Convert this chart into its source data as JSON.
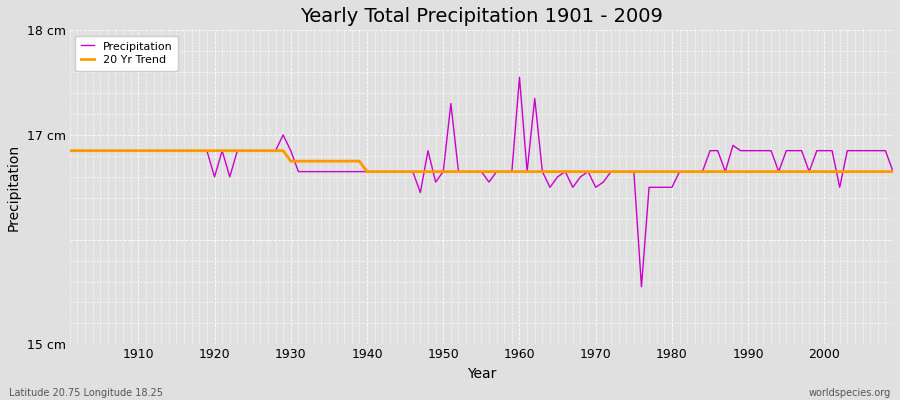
{
  "title": "Yearly Total Precipitation 1901 - 2009",
  "xlabel": "Year",
  "ylabel": "Precipitation",
  "subtitle_left": "Latitude 20.75 Longitude 18.25",
  "watermark": "worldspecies.org",
  "ylim": [
    15.0,
    18.0
  ],
  "yticks": [
    15.0,
    16.0,
    17.0,
    18.0
  ],
  "ytick_labels": [
    "15 cm",
    "",
    "17 cm",
    "18 cm"
  ],
  "xlim": [
    1901,
    2009
  ],
  "xticks": [
    1910,
    1920,
    1930,
    1940,
    1950,
    1960,
    1970,
    1980,
    1990,
    2000
  ],
  "years": [
    1901,
    1902,
    1903,
    1904,
    1905,
    1906,
    1907,
    1908,
    1909,
    1910,
    1911,
    1912,
    1913,
    1914,
    1915,
    1916,
    1917,
    1918,
    1919,
    1920,
    1921,
    1922,
    1923,
    1924,
    1925,
    1926,
    1927,
    1928,
    1929,
    1930,
    1931,
    1932,
    1933,
    1934,
    1935,
    1936,
    1937,
    1938,
    1939,
    1940,
    1941,
    1942,
    1943,
    1944,
    1945,
    1946,
    1947,
    1948,
    1949,
    1950,
    1951,
    1952,
    1953,
    1954,
    1955,
    1956,
    1957,
    1958,
    1959,
    1960,
    1961,
    1962,
    1963,
    1964,
    1965,
    1966,
    1967,
    1968,
    1969,
    1970,
    1971,
    1972,
    1973,
    1974,
    1975,
    1976,
    1977,
    1978,
    1979,
    1980,
    1981,
    1982,
    1983,
    1984,
    1985,
    1986,
    1987,
    1988,
    1989,
    1990,
    1991,
    1992,
    1993,
    1994,
    1995,
    1996,
    1997,
    1998,
    1999,
    2000,
    2001,
    2002,
    2003,
    2004,
    2005,
    2006,
    2007,
    2008,
    2009
  ],
  "precip": [
    16.85,
    16.85,
    16.85,
    16.85,
    16.85,
    16.85,
    16.85,
    16.85,
    16.85,
    16.85,
    16.85,
    16.85,
    16.85,
    16.85,
    16.85,
    16.85,
    16.85,
    16.85,
    16.85,
    16.6,
    16.85,
    16.6,
    16.85,
    16.85,
    16.85,
    16.85,
    16.85,
    16.85,
    17.0,
    16.85,
    16.65,
    16.65,
    16.65,
    16.65,
    16.65,
    16.65,
    16.65,
    16.65,
    16.65,
    16.65,
    16.65,
    16.65,
    16.65,
    16.65,
    16.65,
    16.65,
    16.45,
    16.85,
    16.55,
    16.65,
    17.3,
    16.65,
    16.65,
    16.65,
    16.65,
    16.55,
    16.65,
    16.65,
    16.65,
    17.55,
    16.65,
    17.35,
    16.65,
    16.5,
    16.6,
    16.65,
    16.5,
    16.6,
    16.65,
    16.5,
    16.55,
    16.65,
    16.65,
    16.65,
    16.65,
    15.55,
    16.5,
    16.5,
    16.5,
    16.5,
    16.65,
    16.65,
    16.65,
    16.65,
    16.85,
    16.85,
    16.65,
    16.9,
    16.85,
    16.85,
    16.85,
    16.85,
    16.85,
    16.65,
    16.85,
    16.85,
    16.85,
    16.65,
    16.85,
    16.85,
    16.85,
    16.5,
    16.85,
    16.85,
    16.85,
    16.85,
    16.85,
    16.85,
    16.65
  ],
  "trend": [
    16.85,
    16.85,
    16.85,
    16.85,
    16.85,
    16.85,
    16.85,
    16.85,
    16.85,
    16.85,
    16.85,
    16.85,
    16.85,
    16.85,
    16.85,
    16.85,
    16.85,
    16.85,
    16.85,
    16.85,
    16.85,
    16.85,
    16.85,
    16.85,
    16.85,
    16.85,
    16.85,
    16.85,
    16.85,
    16.75,
    16.75,
    16.75,
    16.75,
    16.75,
    16.75,
    16.75,
    16.75,
    16.75,
    16.75,
    16.65,
    16.65,
    16.65,
    16.65,
    16.65,
    16.65,
    16.65,
    16.65,
    16.65,
    16.65,
    16.65,
    16.65,
    16.65,
    16.65,
    16.65,
    16.65,
    16.65,
    16.65,
    16.65,
    16.65,
    16.65,
    16.65,
    16.65,
    16.65,
    16.65,
    16.65,
    16.65,
    16.65,
    16.65,
    16.65,
    16.65,
    16.65,
    16.65,
    16.65,
    16.65,
    16.65,
    16.65,
    16.65,
    16.65,
    16.65,
    16.65,
    16.65,
    16.65,
    16.65,
    16.65,
    16.65,
    16.65,
    16.65,
    16.65,
    16.65,
    16.65,
    16.65,
    16.65,
    16.65,
    16.65,
    16.65,
    16.65,
    16.65,
    16.65,
    16.65,
    16.65,
    16.65,
    16.65,
    16.65,
    16.65,
    16.65,
    16.65,
    16.65,
    16.65,
    16.65
  ],
  "precip_color": "#cc00cc",
  "trend_color": "#ff9900",
  "bg_color": "#e0e0e0",
  "grid_color": "#ffffff",
  "precip_label": "Precipitation",
  "trend_label": "20 Yr Trend",
  "title_fontsize": 14,
  "axis_fontsize": 9,
  "legend_fontsize": 8
}
